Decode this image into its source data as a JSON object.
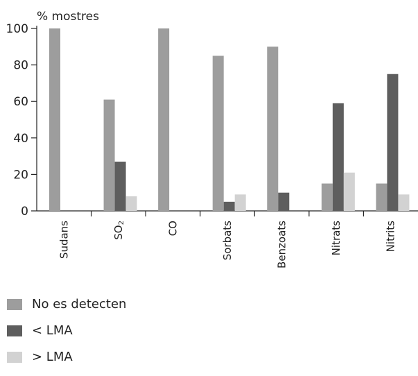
{
  "chart_data": {
    "type": "bar",
    "ylabel": "% mostres",
    "ylim": [
      0,
      100
    ],
    "yticks": [
      0,
      20,
      40,
      60,
      80,
      100
    ],
    "categories": [
      "Sudans",
      "SO2",
      "CO",
      "Sorbats",
      "Benzoats",
      "Nitrats",
      "Nitrits"
    ],
    "series": [
      {
        "name": "No es detecten",
        "color": "#9d9d9d",
        "values": [
          100,
          61,
          100,
          85,
          90,
          15,
          15
        ]
      },
      {
        "name": "< LMA",
        "color": "#5e5e5e",
        "values": [
          0,
          27,
          0,
          5,
          10,
          59,
          75
        ]
      },
      {
        "name": "> LMA",
        "color": "#d2d2d2",
        "values": [
          0,
          8,
          0,
          9,
          0,
          21,
          9
        ]
      }
    ],
    "grid": false,
    "legend_position": "bottom-left"
  }
}
